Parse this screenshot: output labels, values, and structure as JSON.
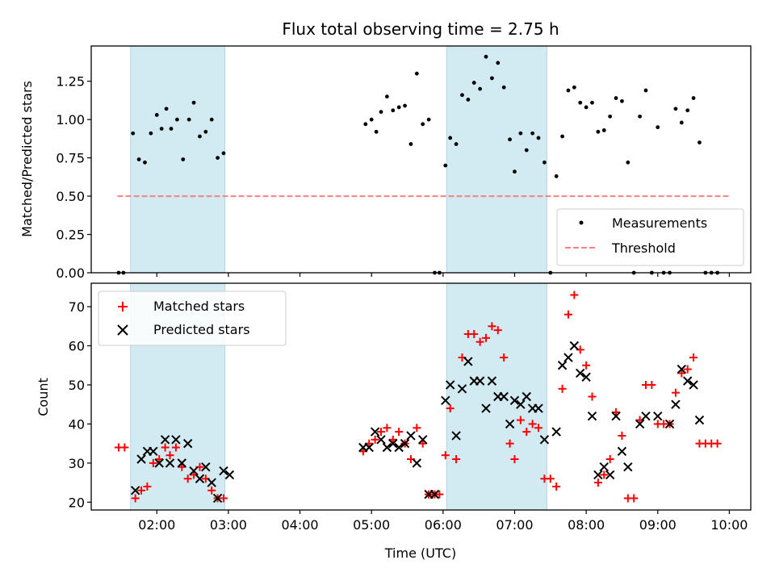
{
  "chart_data": [
    {
      "type": "scatter",
      "title": "Flux total observing time = 2.75 h",
      "xlabel": "",
      "ylabel": "Matched/Predicted stars",
      "xlim": [
        "01:05",
        "10:18"
      ],
      "ylim": [
        0,
        1.48
      ],
      "x_ticks": [
        "02:00",
        "03:00",
        "04:00",
        "05:00",
        "06:00",
        "07:00",
        "08:00",
        "09:00",
        "10:00"
      ],
      "y_ticks": [
        0.0,
        0.25,
        0.5,
        0.75,
        1.0,
        1.25
      ],
      "y_tick_labels": [
        "0.00",
        "0.25",
        "0.50",
        "0.75",
        "1.00",
        "1.25"
      ],
      "shaded_intervals": [
        [
          "01:38",
          "02:57"
        ],
        [
          "06:03",
          "07:27"
        ]
      ],
      "shade_color": "#add8e6",
      "legend": {
        "placement": "lower-right",
        "entries": [
          "Measurements",
          "Threshold"
        ]
      },
      "threshold": {
        "name": "Threshold",
        "value": 0.5,
        "x_range": [
          "01:27",
          "10:00"
        ],
        "color": "#ff8080",
        "style": "dashed"
      },
      "series": [
        {
          "name": "Measurements",
          "marker": "dot",
          "color": "#000000",
          "points": [
            [
              "01:28",
              0.0
            ],
            [
              "01:32",
              0.0
            ],
            [
              "01:40",
              0.91
            ],
            [
              "01:45",
              0.74
            ],
            [
              "01:50",
              0.72
            ],
            [
              "01:55",
              0.91
            ],
            [
              "02:00",
              1.03
            ],
            [
              "02:04",
              0.94
            ],
            [
              "02:08",
              1.07
            ],
            [
              "02:12",
              0.94
            ],
            [
              "02:17",
              1.0
            ],
            [
              "02:22",
              0.74
            ],
            [
              "02:27",
              1.0
            ],
            [
              "02:31",
              1.11
            ],
            [
              "02:36",
              0.89
            ],
            [
              "02:41",
              0.92
            ],
            [
              "02:46",
              1.0
            ],
            [
              "02:51",
              0.75
            ],
            [
              "02:56",
              0.78
            ],
            [
              "04:55",
              0.97
            ],
            [
              "05:00",
              1.0
            ],
            [
              "05:04",
              0.92
            ],
            [
              "05:08",
              1.05
            ],
            [
              "05:13",
              1.15
            ],
            [
              "05:18",
              1.06
            ],
            [
              "05:23",
              1.08
            ],
            [
              "05:28",
              1.09
            ],
            [
              "05:33",
              0.84
            ],
            [
              "05:38",
              1.3
            ],
            [
              "05:43",
              0.97
            ],
            [
              "05:48",
              1.0
            ],
            [
              "05:53",
              0.0
            ],
            [
              "05:57",
              0.0
            ],
            [
              "06:02",
              0.7
            ],
            [
              "06:06",
              0.88
            ],
            [
              "06:11",
              0.84
            ],
            [
              "06:16",
              1.16
            ],
            [
              "06:21",
              1.13
            ],
            [
              "06:26",
              1.24
            ],
            [
              "06:31",
              1.2
            ],
            [
              "06:36",
              1.41
            ],
            [
              "06:41",
              1.27
            ],
            [
              "06:46",
              1.37
            ],
            [
              "06:51",
              1.21
            ],
            [
              "06:56",
              0.87
            ],
            [
              "07:00",
              0.66
            ],
            [
              "07:05",
              0.91
            ],
            [
              "07:10",
              0.8
            ],
            [
              "07:15",
              0.91
            ],
            [
              "07:20",
              0.88
            ],
            [
              "07:25",
              0.72
            ],
            [
              "07:30",
              0.0
            ],
            [
              "07:35",
              0.63
            ],
            [
              "07:40",
              0.89
            ],
            [
              "07:45",
              1.19
            ],
            [
              "07:50",
              1.21
            ],
            [
              "07:55",
              1.11
            ],
            [
              "08:00",
              1.08
            ],
            [
              "08:05",
              1.11
            ],
            [
              "08:10",
              0.92
            ],
            [
              "08:15",
              0.93
            ],
            [
              "08:20",
              1.02
            ],
            [
              "08:25",
              1.14
            ],
            [
              "08:30",
              1.12
            ],
            [
              "08:35",
              0.72
            ],
            [
              "08:40",
              0.0
            ],
            [
              "08:45",
              1.02
            ],
            [
              "08:50",
              1.19
            ],
            [
              "08:55",
              0.0
            ],
            [
              "09:00",
              0.95
            ],
            [
              "09:05",
              0.0
            ],
            [
              "09:10",
              0.0
            ],
            [
              "09:15",
              1.07
            ],
            [
              "09:20",
              0.98
            ],
            [
              "09:25",
              1.06
            ],
            [
              "09:30",
              1.14
            ],
            [
              "09:35",
              0.85
            ],
            [
              "09:40",
              0.0
            ],
            [
              "09:45",
              0.0
            ],
            [
              "09:50",
              0.0
            ]
          ]
        }
      ]
    },
    {
      "type": "scatter",
      "title": "",
      "xlabel": "Time (UTC)",
      "ylabel": "Count",
      "xlim": [
        "01:05",
        "10:18"
      ],
      "ylim": [
        18,
        76
      ],
      "x_ticks": [
        "02:00",
        "03:00",
        "04:00",
        "05:00",
        "06:00",
        "07:00",
        "08:00",
        "09:00",
        "10:00"
      ],
      "y_ticks": [
        20,
        30,
        40,
        50,
        60,
        70
      ],
      "shaded_intervals": [
        [
          "01:38",
          "02:57"
        ],
        [
          "06:03",
          "07:27"
        ]
      ],
      "shade_color": "#add8e6",
      "legend": {
        "placement": "top-left",
        "entries": [
          "Matched stars",
          "Predicted stars"
        ]
      },
      "series": [
        {
          "name": "Matched stars",
          "marker": "plus",
          "color": "#ff0000",
          "points": [
            [
              "01:28",
              34
            ],
            [
              "01:33",
              34
            ],
            [
              "01:42",
              21
            ],
            [
              "01:47",
              23
            ],
            [
              "01:52",
              24
            ],
            [
              "01:57",
              30
            ],
            [
              "02:02",
              31
            ],
            [
              "02:07",
              34
            ],
            [
              "02:11",
              32
            ],
            [
              "02:16",
              34
            ],
            [
              "02:21",
              29
            ],
            [
              "02:26",
              26
            ],
            [
              "02:31",
              27
            ],
            [
              "02:36",
              29
            ],
            [
              "02:41",
              26
            ],
            [
              "02:46",
              23
            ],
            [
              "02:51",
              21
            ],
            [
              "02:56",
              21
            ],
            [
              "04:53",
              33
            ],
            [
              "04:58",
              35
            ],
            [
              "05:03",
              36
            ],
            [
              "05:08",
              38
            ],
            [
              "05:13",
              39
            ],
            [
              "05:18",
              36
            ],
            [
              "05:23",
              38
            ],
            [
              "05:28",
              35
            ],
            [
              "05:33",
              31
            ],
            [
              "05:38",
              39
            ],
            [
              "05:43",
              35
            ],
            [
              "05:48",
              22
            ],
            [
              "05:53",
              22
            ],
            [
              "05:57",
              22
            ],
            [
              "06:02",
              32
            ],
            [
              "06:06",
              44
            ],
            [
              "06:11",
              31
            ],
            [
              "06:16",
              57
            ],
            [
              "06:21",
              63
            ],
            [
              "06:26",
              63
            ],
            [
              "06:31",
              61
            ],
            [
              "06:36",
              62
            ],
            [
              "06:41",
              65
            ],
            [
              "06:46",
              64
            ],
            [
              "06:51",
              57
            ],
            [
              "06:56",
              35
            ],
            [
              "07:00",
              31
            ],
            [
              "07:05",
              41
            ],
            [
              "07:10",
              38
            ],
            [
              "07:15",
              40
            ],
            [
              "07:20",
              39
            ],
            [
              "07:25",
              26
            ],
            [
              "07:30",
              26
            ],
            [
              "07:35",
              24
            ],
            [
              "07:40",
              49
            ],
            [
              "07:45",
              68
            ],
            [
              "07:50",
              73
            ],
            [
              "07:55",
              59
            ],
            [
              "08:00",
              55
            ],
            [
              "08:05",
              47
            ],
            [
              "08:10",
              25
            ],
            [
              "08:15",
              27
            ],
            [
              "08:20",
              31
            ],
            [
              "08:25",
              43
            ],
            [
              "08:30",
              37
            ],
            [
              "08:35",
              21
            ],
            [
              "08:40",
              21
            ],
            [
              "08:45",
              41
            ],
            [
              "08:50",
              50
            ],
            [
              "08:55",
              50
            ],
            [
              "09:00",
              40
            ],
            [
              "09:05",
              40
            ],
            [
              "09:10",
              40
            ],
            [
              "09:15",
              48
            ],
            [
              "09:20",
              53
            ],
            [
              "09:25",
              54
            ],
            [
              "09:30",
              57
            ],
            [
              "09:35",
              35
            ],
            [
              "09:40",
              35
            ],
            [
              "09:45",
              35
            ],
            [
              "09:50",
              35
            ]
          ]
        },
        {
          "name": "Predicted stars",
          "marker": "x",
          "color": "#000000",
          "points": [
            [
              "01:42",
              23
            ],
            [
              "01:47",
              31
            ],
            [
              "01:52",
              33
            ],
            [
              "01:57",
              33
            ],
            [
              "02:02",
              30
            ],
            [
              "02:07",
              36
            ],
            [
              "02:11",
              30
            ],
            [
              "02:16",
              36
            ],
            [
              "02:21",
              30
            ],
            [
              "02:26",
              35
            ],
            [
              "02:31",
              28
            ],
            [
              "02:36",
              26
            ],
            [
              "02:41",
              29
            ],
            [
              "02:46",
              25
            ],
            [
              "02:51",
              21
            ],
            [
              "02:56",
              28
            ],
            [
              "03:01",
              27
            ],
            [
              "04:53",
              34
            ],
            [
              "04:58",
              34
            ],
            [
              "05:03",
              38
            ],
            [
              "05:08",
              36
            ],
            [
              "05:13",
              34
            ],
            [
              "05:18",
              35
            ],
            [
              "05:23",
              34
            ],
            [
              "05:28",
              35
            ],
            [
              "05:33",
              37
            ],
            [
              "05:38",
              30
            ],
            [
              "05:43",
              36
            ],
            [
              "05:48",
              22
            ],
            [
              "05:53",
              22
            ],
            [
              "06:02",
              46
            ],
            [
              "06:06",
              50
            ],
            [
              "06:11",
              37
            ],
            [
              "06:16",
              49
            ],
            [
              "06:21",
              56
            ],
            [
              "06:26",
              51
            ],
            [
              "06:31",
              51
            ],
            [
              "06:36",
              44
            ],
            [
              "06:41",
              51
            ],
            [
              "06:46",
              47
            ],
            [
              "06:51",
              47
            ],
            [
              "06:56",
              40
            ],
            [
              "07:00",
              46
            ],
            [
              "07:05",
              45
            ],
            [
              "07:10",
              47
            ],
            [
              "07:15",
              44
            ],
            [
              "07:20",
              44
            ],
            [
              "07:25",
              36
            ],
            [
              "07:35",
              38
            ],
            [
              "07:40",
              55
            ],
            [
              "07:45",
              57
            ],
            [
              "07:50",
              60
            ],
            [
              "07:55",
              53
            ],
            [
              "08:00",
              52
            ],
            [
              "08:05",
              42
            ],
            [
              "08:10",
              27
            ],
            [
              "08:15",
              29
            ],
            [
              "08:20",
              27
            ],
            [
              "08:25",
              42
            ],
            [
              "08:30",
              33
            ],
            [
              "08:35",
              29
            ],
            [
              "08:45",
              40
            ],
            [
              "08:50",
              42
            ],
            [
              "09:00",
              42
            ],
            [
              "09:10",
              40
            ],
            [
              "09:15",
              45
            ],
            [
              "09:20",
              54
            ],
            [
              "09:25",
              51
            ],
            [
              "09:30",
              50
            ],
            [
              "09:35",
              41
            ]
          ]
        }
      ]
    }
  ]
}
